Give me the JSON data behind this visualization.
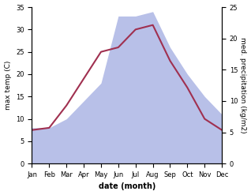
{
  "months": [
    "Jan",
    "Feb",
    "Mar",
    "Apr",
    "May",
    "Jun",
    "Jul",
    "Aug",
    "Sep",
    "Oct",
    "Nov",
    "Dec"
  ],
  "temperature": [
    7.5,
    8.0,
    13.0,
    19.0,
    25.0,
    26.0,
    30.0,
    31.0,
    23.0,
    17.0,
    10.0,
    7.5
  ],
  "precipitation_left_scale": [
    8.0,
    8.0,
    10.0,
    14.0,
    18.0,
    33.0,
    33.0,
    34.0,
    26.0,
    20.0,
    15.0,
    11.0
  ],
  "temp_color": "#a03050",
  "precip_color": "#b8c0e8",
  "temp_ylim": [
    0,
    35
  ],
  "precip_ylim": [
    0,
    25
  ],
  "temp_yticks": [
    0,
    5,
    10,
    15,
    20,
    25,
    30,
    35
  ],
  "precip_yticks": [
    0,
    5,
    10,
    15,
    20,
    25
  ],
  "xlabel": "date (month)",
  "ylabel_left": "max temp (C)",
  "ylabel_right": "med. precipitation (kg/m2)",
  "background_color": "#ffffff",
  "fig_width": 3.18,
  "fig_height": 2.47,
  "dpi": 100
}
